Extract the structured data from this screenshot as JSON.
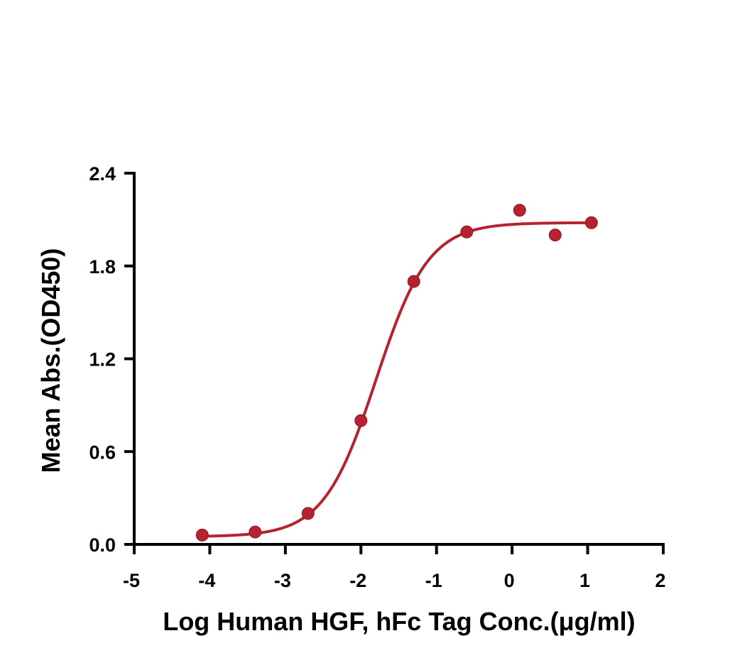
{
  "chart_data": {
    "type": "scatter",
    "xlabel": "Log Human HGF, hFc Tag Conc.(μg/ml)",
    "ylabel": "Mean Abs.(OD450)",
    "xlim": [
      -5,
      2
    ],
    "ylim": [
      0,
      2.4
    ],
    "x_ticks": [
      -5,
      -4,
      -3,
      -2,
      -1,
      0,
      1,
      2
    ],
    "x_tick_labels": [
      "-5",
      "-4",
      "-3",
      "-2",
      "-1",
      "0",
      "1",
      "2"
    ],
    "y_ticks": [
      0,
      0.6,
      1.2,
      1.8,
      2.4
    ],
    "y_tick_labels": [
      "0.0",
      "0.6",
      "1.2",
      "1.8",
      "2.4"
    ],
    "grid": false,
    "series": [
      {
        "points": [
          {
            "x": -4.1,
            "y": 0.06
          },
          {
            "x": -3.4,
            "y": 0.08
          },
          {
            "x": -2.7,
            "y": 0.2
          },
          {
            "x": -2.0,
            "y": 0.8
          },
          {
            "x": -1.3,
            "y": 1.7
          },
          {
            "x": -0.6,
            "y": 2.02
          },
          {
            "x": 0.1,
            "y": 2.16
          },
          {
            "x": 0.57,
            "y": 2.0
          },
          {
            "x": 1.05,
            "y": 2.08
          }
        ],
        "fit": {
          "model": "4PL",
          "bottom": 0.05,
          "top": 2.08,
          "logEC50": -1.8,
          "hill": 1.25,
          "x_range": [
            -4.1,
            1.05
          ]
        },
        "color": "#b5232f"
      }
    ]
  }
}
